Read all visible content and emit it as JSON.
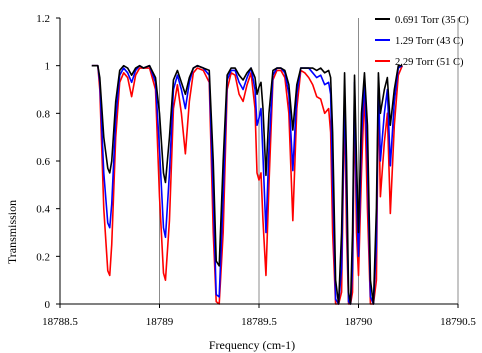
{
  "chart_data": {
    "type": "line",
    "xlabel": "Frequency (cm-1)",
    "ylabel": "Transmission",
    "xlim": [
      18788.5,
      18790.5
    ],
    "ylim": [
      0,
      1.2
    ],
    "x_ticks": [
      18788.5,
      18789,
      18789.5,
      18790,
      18790.5
    ],
    "x_tick_labels": [
      "18788.5",
      "18789",
      "18789.5",
      "18790",
      "18790.5"
    ],
    "y_ticks": [
      0,
      0.2,
      0.4,
      0.6,
      0.8,
      1,
      1.2
    ],
    "y_tick_labels": [
      "0",
      "0.2",
      "0.4",
      "0.6",
      "0.8",
      "1",
      "1.2"
    ],
    "grid": "vertical",
    "legend_position": "top-right",
    "series": [
      {
        "name": "0.691 Torr (35 C)",
        "color": "#000000",
        "x": [
          18788.66,
          18788.69,
          18788.7,
          18788.72,
          18788.74,
          18788.75,
          18788.76,
          18788.78,
          18788.8,
          18788.82,
          18788.84,
          18788.86,
          18788.88,
          18788.9,
          18788.92,
          18788.95,
          18788.98,
          18789.0,
          18789.02,
          18789.03,
          18789.05,
          18789.07,
          18789.09,
          18789.11,
          18789.13,
          18789.15,
          18789.17,
          18789.19,
          18789.22,
          18789.25,
          18789.27,
          18789.285,
          18789.3,
          18789.32,
          18789.34,
          18789.36,
          18789.38,
          18789.4,
          18789.42,
          18789.44,
          18789.46,
          18789.48,
          18789.49,
          18789.5,
          18789.51,
          18789.52,
          18789.535,
          18789.55,
          18789.57,
          18789.59,
          18789.61,
          18789.63,
          18789.65,
          18789.67,
          18789.69,
          18789.71,
          18789.73,
          18789.75,
          18789.77,
          18789.79,
          18789.81,
          18789.83,
          18789.85,
          18789.86,
          18789.87,
          18789.885,
          18789.9,
          18789.915,
          18789.93,
          18789.94,
          18789.95,
          18789.96,
          18789.97,
          18789.98,
          18789.99,
          18790.0,
          18790.015,
          18790.03,
          18790.045,
          18790.06,
          18790.075,
          18790.09,
          18790.1,
          18790.11,
          18790.13,
          18790.145,
          18790.16,
          18790.18,
          18790.2,
          18790.22
        ],
        "values": [
          1.0,
          1.0,
          0.95,
          0.7,
          0.57,
          0.55,
          0.6,
          0.85,
          0.98,
          1.0,
          0.99,
          0.96,
          0.99,
          1.0,
          0.99,
          1.0,
          0.95,
          0.8,
          0.55,
          0.51,
          0.7,
          0.94,
          0.98,
          0.93,
          0.88,
          0.95,
          0.99,
          1.0,
          0.99,
          0.98,
          0.6,
          0.18,
          0.16,
          0.6,
          0.96,
          0.99,
          0.99,
          0.96,
          0.94,
          0.97,
          0.99,
          0.95,
          0.88,
          0.91,
          0.93,
          0.82,
          0.54,
          0.8,
          0.98,
          0.99,
          0.99,
          0.98,
          0.92,
          0.73,
          0.92,
          0.99,
          0.99,
          0.99,
          0.99,
          0.98,
          0.99,
          0.97,
          0.98,
          0.95,
          0.72,
          0.1,
          0.0,
          0.3,
          0.97,
          0.6,
          0.05,
          0.0,
          0.3,
          0.96,
          0.6,
          0.3,
          0.8,
          0.97,
          0.75,
          0.1,
          0.0,
          0.4,
          0.97,
          0.8,
          0.9,
          0.95,
          0.75,
          0.9,
          1.0,
          1.0
        ]
      },
      {
        "name": "1.29 Torr (43 C)",
        "color": "#0000ff",
        "x": [
          18788.66,
          18788.69,
          18788.7,
          18788.72,
          18788.74,
          18788.75,
          18788.76,
          18788.78,
          18788.8,
          18788.82,
          18788.84,
          18788.86,
          18788.88,
          18788.9,
          18788.92,
          18788.95,
          18788.98,
          18789.0,
          18789.02,
          18789.03,
          18789.05,
          18789.07,
          18789.09,
          18789.11,
          18789.13,
          18789.15,
          18789.17,
          18789.19,
          18789.22,
          18789.25,
          18789.27,
          18789.285,
          18789.3,
          18789.32,
          18789.34,
          18789.36,
          18789.38,
          18789.4,
          18789.42,
          18789.44,
          18789.46,
          18789.48,
          18789.49,
          18789.5,
          18789.51,
          18789.52,
          18789.535,
          18789.55,
          18789.57,
          18789.59,
          18789.61,
          18789.63,
          18789.65,
          18789.67,
          18789.69,
          18789.71,
          18789.73,
          18789.75,
          18789.77,
          18789.79,
          18789.81,
          18789.83,
          18789.85,
          18789.86,
          18789.87,
          18789.885,
          18789.9,
          18789.915,
          18789.93,
          18789.94,
          18789.95,
          18789.96,
          18789.97,
          18789.98,
          18789.99,
          18790.0,
          18790.015,
          18790.03,
          18790.045,
          18790.06,
          18790.075,
          18790.09,
          18790.1,
          18790.11,
          18790.13,
          18790.145,
          18790.16,
          18790.18,
          18790.2,
          18790.22
        ],
        "values": [
          1.0,
          1.0,
          0.93,
          0.55,
          0.34,
          0.32,
          0.42,
          0.78,
          0.96,
          0.99,
          0.97,
          0.93,
          0.98,
          1.0,
          0.99,
          1.0,
          0.93,
          0.65,
          0.32,
          0.28,
          0.55,
          0.9,
          0.96,
          0.9,
          0.82,
          0.93,
          0.99,
          1.0,
          0.99,
          0.96,
          0.45,
          0.04,
          0.03,
          0.45,
          0.94,
          0.98,
          0.98,
          0.93,
          0.9,
          0.95,
          0.99,
          0.9,
          0.75,
          0.78,
          0.82,
          0.62,
          0.3,
          0.65,
          0.96,
          0.99,
          0.99,
          0.97,
          0.88,
          0.56,
          0.88,
          0.99,
          0.99,
          0.99,
          0.97,
          0.95,
          0.96,
          0.92,
          0.93,
          0.88,
          0.5,
          0.02,
          0.0,
          0.15,
          0.9,
          0.45,
          0.01,
          0.0,
          0.15,
          0.93,
          0.45,
          0.2,
          0.7,
          0.94,
          0.6,
          0.03,
          0.0,
          0.25,
          0.95,
          0.6,
          0.8,
          0.9,
          0.58,
          0.85,
          0.99,
          1.0
        ]
      },
      {
        "name": "2.29 Torr (51 C)",
        "color": "#ff0000",
        "x": [
          18788.66,
          18788.69,
          18788.7,
          18788.72,
          18788.74,
          18788.75,
          18788.76,
          18788.78,
          18788.8,
          18788.82,
          18788.84,
          18788.86,
          18788.88,
          18788.9,
          18788.92,
          18788.95,
          18788.98,
          18789.0,
          18789.02,
          18789.03,
          18789.05,
          18789.07,
          18789.09,
          18789.11,
          18789.13,
          18789.15,
          18789.17,
          18789.19,
          18789.22,
          18789.25,
          18789.27,
          18789.285,
          18789.3,
          18789.32,
          18789.34,
          18789.36,
          18789.38,
          18789.4,
          18789.42,
          18789.44,
          18789.46,
          18789.48,
          18789.49,
          18789.5,
          18789.51,
          18789.52,
          18789.535,
          18789.55,
          18789.57,
          18789.59,
          18789.61,
          18789.63,
          18789.65,
          18789.67,
          18789.69,
          18789.71,
          18789.73,
          18789.75,
          18789.77,
          18789.79,
          18789.81,
          18789.83,
          18789.85,
          18789.86,
          18789.87,
          18789.885,
          18789.9,
          18789.915,
          18789.93,
          18789.94,
          18789.95,
          18789.96,
          18789.97,
          18789.98,
          18789.99,
          18790.0,
          18790.015,
          18790.03,
          18790.045,
          18790.06,
          18790.075,
          18790.09,
          18790.1,
          18790.11,
          18790.13,
          18790.145,
          18790.16,
          18790.18,
          18790.2,
          18790.22
        ],
        "values": [
          1.0,
          1.0,
          0.9,
          0.4,
          0.14,
          0.12,
          0.25,
          0.7,
          0.93,
          0.97,
          0.95,
          0.87,
          0.96,
          0.99,
          0.99,
          0.99,
          0.9,
          0.45,
          0.13,
          0.1,
          0.35,
          0.82,
          0.92,
          0.8,
          0.63,
          0.85,
          0.97,
          0.99,
          0.98,
          0.93,
          0.3,
          0.01,
          0.0,
          0.3,
          0.9,
          0.97,
          0.96,
          0.88,
          0.85,
          0.92,
          0.97,
          0.82,
          0.55,
          0.52,
          0.55,
          0.35,
          0.12,
          0.5,
          0.94,
          0.98,
          0.98,
          0.95,
          0.8,
          0.35,
          0.82,
          0.98,
          0.97,
          0.95,
          0.92,
          0.87,
          0.86,
          0.8,
          0.82,
          0.72,
          0.3,
          0.0,
          0.0,
          0.05,
          0.85,
          0.3,
          0.0,
          0.0,
          0.05,
          0.86,
          0.3,
          0.12,
          0.55,
          0.9,
          0.4,
          0.0,
          0.0,
          0.1,
          0.9,
          0.45,
          0.68,
          0.8,
          0.38,
          0.75,
          0.96,
          1.0
        ]
      }
    ]
  }
}
